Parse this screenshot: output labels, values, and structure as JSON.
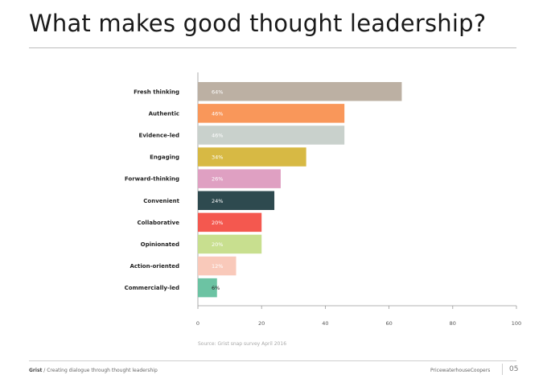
{
  "title": "What makes good thought leadership?",
  "source": "Source: Grist snap survey April 2016",
  "footer": {
    "brand": "Grist",
    "tagline": " / Creating dialogue through thought leadership",
    "company": "PricewaterhouseCoopers",
    "page": "05"
  },
  "chart_data": {
    "type": "bar",
    "orientation": "horizontal",
    "categories": [
      "Fresh thinking",
      "Authentic",
      "Evidence-led",
      "Engaging",
      "Forward-thinking",
      "Convenient",
      "Collaborative",
      "Opinionated",
      "Action-oriented",
      "Commercially-led"
    ],
    "values": [
      64,
      46,
      46,
      34,
      26,
      24,
      20,
      20,
      12,
      6
    ],
    "data_labels": [
      "64%",
      "46%",
      "46%",
      "34%",
      "26%",
      "24%",
      "20%",
      "20%",
      "12%",
      "6%"
    ],
    "colors": [
      "#bcb0a3",
      "#f9975a",
      "#c9d1cc",
      "#d7b944",
      "#dfa0c2",
      "#2e4a4f",
      "#f4584f",
      "#c8df8f",
      "#f9c9ba",
      "#6cc3a3"
    ],
    "label_colors": [
      "#ffffff",
      "#ffffff",
      "#ffffff",
      "#ffffff",
      "#ffffff",
      "#ffffff",
      "#ffffff",
      "#ffffff",
      "#ffffff",
      "#222222"
    ],
    "xlim": [
      0,
      100
    ],
    "xticks": [
      "0",
      "20",
      "40",
      "60",
      "80",
      "100"
    ],
    "grid": false
  }
}
